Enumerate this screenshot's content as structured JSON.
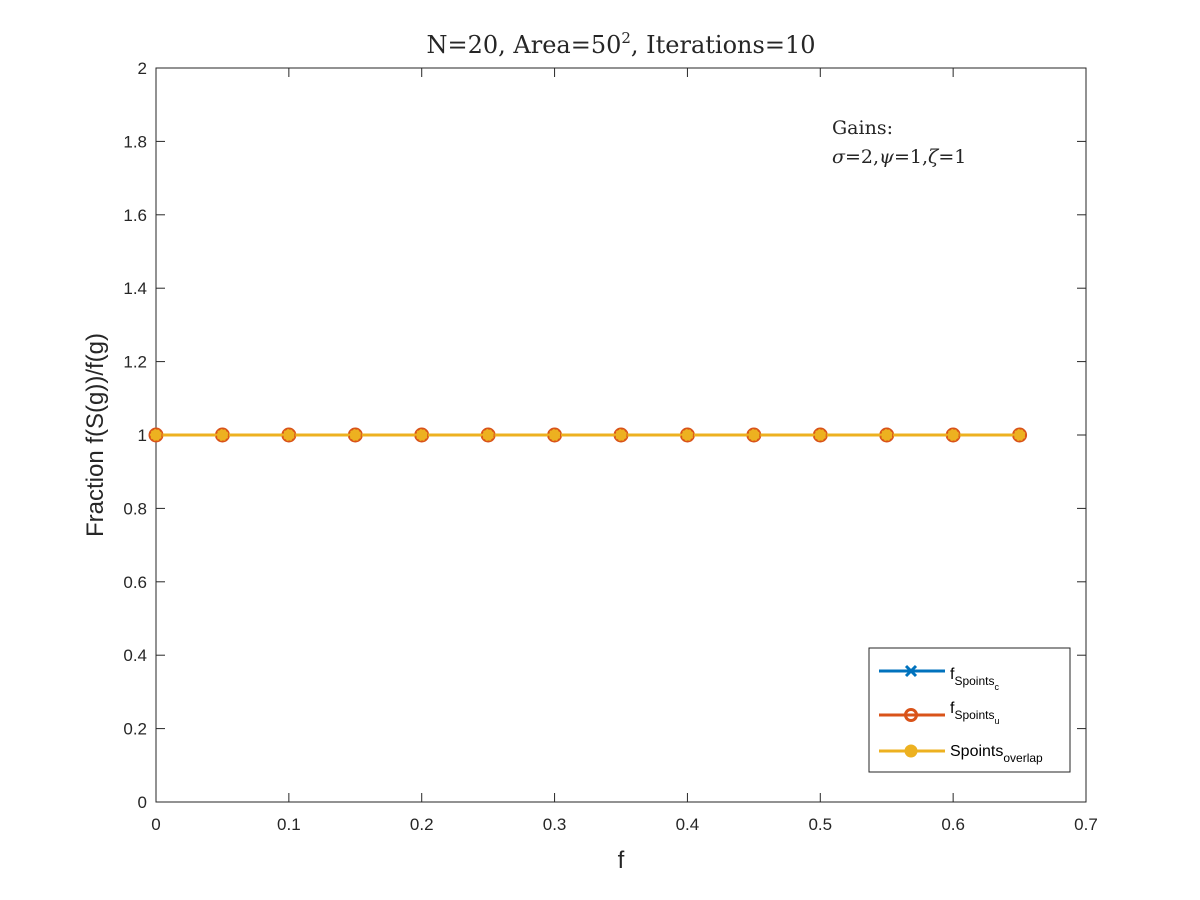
{
  "chart_data": {
    "type": "line",
    "title": {
      "main": "N=20, Area=50",
      "superscript": "2",
      "rest": ", Iterations=10"
    },
    "xlabel": "f",
    "ylabel": "Fraction f(S(g))/f(g)",
    "xlim": [
      0,
      0.7
    ],
    "ylim": [
      0,
      2
    ],
    "xticks": [
      0,
      0.1,
      0.2,
      0.3,
      0.4,
      0.5,
      0.6,
      0.7
    ],
    "xtick_labels": [
      "0",
      "0.1",
      "0.2",
      "0.3",
      "0.4",
      "0.5",
      "0.6",
      "0.7"
    ],
    "yticks": [
      0,
      0.2,
      0.4,
      0.6,
      0.8,
      1,
      1.2,
      1.4,
      1.6,
      1.8,
      2
    ],
    "ytick_labels": [
      "0",
      "0.2",
      "0.4",
      "0.6",
      "0.8",
      "1",
      "1.2",
      "1.4",
      "1.6",
      "1.8",
      "2"
    ],
    "grid": false,
    "legend_position": "bottom-right",
    "x": [
      0,
      0.05,
      0.1,
      0.15,
      0.2,
      0.25,
      0.3,
      0.35,
      0.4,
      0.45,
      0.5,
      0.55,
      0.6,
      0.65
    ],
    "series": [
      {
        "name_base": "f",
        "name_sub": "Spoints",
        "name_subsub": "c",
        "color": "#0072BD",
        "marker": "x",
        "values": [
          1,
          1,
          1,
          1,
          1,
          1,
          1,
          1,
          1,
          1,
          1,
          1,
          1,
          1
        ]
      },
      {
        "name_base": "f",
        "name_sub": "Spoints",
        "name_subsub": "u",
        "color": "#D95319",
        "marker": "o",
        "values": [
          1,
          1,
          1,
          1,
          1,
          1,
          1,
          1,
          1,
          1,
          1,
          1,
          1,
          1
        ]
      },
      {
        "name_base": "Spoints",
        "name_sub": "overlap",
        "name_subsub": "",
        "color": "#EDB120",
        "marker": "filled-circle",
        "values": [
          1,
          1,
          1,
          1,
          1,
          1,
          1,
          1,
          1,
          1,
          1,
          1,
          1,
          1
        ]
      }
    ],
    "annotation": {
      "line1": "Gains:",
      "sigma_symbol": "σ",
      "sigma_value": "=2,",
      "psi_symbol": "ψ",
      "psi_value": "=1,",
      "zeta_symbol": "ζ",
      "zeta_value": "=1"
    }
  }
}
